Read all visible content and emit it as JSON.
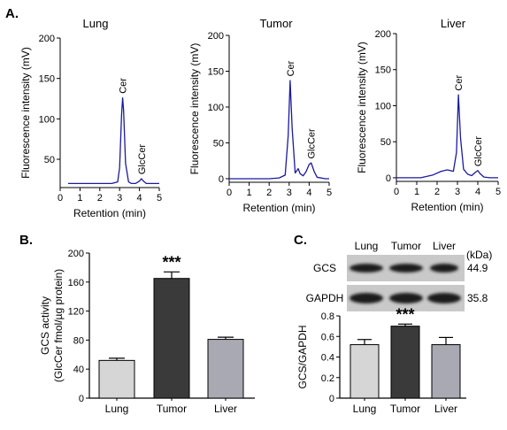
{
  "figure_labels": {
    "a": "A.",
    "b": "B.",
    "c": "C."
  },
  "chart_data": [
    {
      "type": "line",
      "title": "Lung",
      "xlabel": "Retention (min)",
      "ylabel": "Fluorescence intensity (mV)",
      "xlim": [
        0,
        5
      ],
      "ylim": [
        15,
        200
      ],
      "xticks": [
        "0",
        "1",
        "2",
        "3",
        "4",
        "5"
      ],
      "yticks": [
        "50",
        "100",
        "150",
        "200"
      ],
      "ytick_values": [
        50,
        100,
        150,
        200
      ],
      "series": [
        {
          "color": "#1a1aa0",
          "x": [
            0.4,
            2.6,
            2.9,
            3.0,
            3.1,
            3.15,
            3.2,
            3.3,
            3.45,
            3.6,
            3.8,
            4.0,
            4.1,
            4.2,
            4.35,
            4.5,
            5.0
          ],
          "y": [
            20,
            20,
            22,
            40,
            105,
            126,
            110,
            45,
            22,
            20,
            20,
            23,
            26,
            23,
            20,
            20,
            20
          ]
        }
      ],
      "annotations": [
        {
          "text": "Cer",
          "x": 3.15,
          "y": 128
        },
        {
          "text": "GlcCer",
          "x": 4.1,
          "y": 28
        }
      ]
    },
    {
      "type": "line",
      "title": "Tumor",
      "xlabel": "Retention (min)",
      "ylabel": "Fluorescence intensity (mV)",
      "xlim": [
        0,
        5
      ],
      "ylim": [
        -5,
        200
      ],
      "xticks": [
        "0",
        "1",
        "2",
        "3",
        "4",
        "5"
      ],
      "yticks": [
        "0",
        "50",
        "100",
        "150",
        "200"
      ],
      "ytick_values": [
        0,
        50,
        100,
        150,
        200
      ],
      "series": [
        {
          "color": "#1a1aa0",
          "x": [
            0.0,
            2.0,
            2.5,
            2.8,
            2.95,
            3.05,
            3.15,
            3.3,
            3.45,
            3.55,
            3.7,
            3.85,
            4.0,
            4.1,
            4.25,
            4.4,
            4.8,
            5.0
          ],
          "y": [
            0,
            0,
            1,
            5,
            60,
            137,
            70,
            8,
            14,
            7,
            4,
            10,
            20,
            22,
            10,
            2,
            0,
            0
          ]
        }
      ],
      "annotations": [
        {
          "text": "Cer",
          "x": 3.05,
          "y": 139
        },
        {
          "text": "GlcCer",
          "x": 4.1,
          "y": 24
        }
      ]
    },
    {
      "type": "line",
      "title": "Liver",
      "xlabel": "Retention (min)",
      "ylabel": "Fluorescence intensity (mV)",
      "xlim": [
        0,
        5
      ],
      "ylim": [
        -5,
        200
      ],
      "xticks": [
        "0",
        "1",
        "2",
        "3",
        "4",
        "5"
      ],
      "yticks": [
        "0",
        "50",
        "100",
        "150",
        "200"
      ],
      "ytick_values": [
        0,
        50,
        100,
        150,
        200
      ],
      "series": [
        {
          "color": "#1a1aa0",
          "x": [
            0.0,
            1.2,
            1.8,
            2.2,
            2.5,
            2.8,
            2.95,
            3.05,
            3.15,
            3.3,
            3.5,
            3.7,
            3.9,
            4.0,
            4.1,
            4.3,
            4.6,
            5.0
          ],
          "y": [
            0,
            0,
            4,
            9,
            11,
            9,
            35,
            115,
            55,
            12,
            5,
            3,
            8,
            10,
            6,
            1,
            0,
            0
          ]
        }
      ],
      "annotations": [
        {
          "text": "Cer",
          "x": 3.05,
          "y": 117
        },
        {
          "text": "GlcCer",
          "x": 4.0,
          "y": 12
        }
      ]
    },
    {
      "type": "bar",
      "categories": [
        "Lung",
        "Tumor",
        "Liver"
      ],
      "values": [
        52,
        165,
        81
      ],
      "errors": [
        3,
        9,
        3
      ],
      "colors": [
        "#d6d6d6",
        "#3a3a3a",
        "#a9a9b4"
      ],
      "ylabel_lines": [
        "GCS activity",
        "(GlcCer fmol/µg protein)"
      ],
      "ylim": [
        0,
        200
      ],
      "yticks": [
        "0",
        "40",
        "80",
        "120",
        "160",
        "200"
      ],
      "ytick_values": [
        0,
        40,
        80,
        120,
        160,
        200
      ],
      "significance": {
        "category": "Tumor",
        "text": "***"
      }
    },
    {
      "type": "bar",
      "categories": [
        "Lung",
        "Tumor",
        "Liver"
      ],
      "values": [
        0.52,
        0.7,
        0.52
      ],
      "errors": [
        0.05,
        0.02,
        0.07
      ],
      "colors": [
        "#d6d6d6",
        "#3a3a3a",
        "#a9a9b4"
      ],
      "ylabel": "GCS/GAPDH",
      "ylim": [
        0,
        0.8
      ],
      "yticks": [
        "0",
        "0.2",
        "0.4",
        "0.6",
        "0.8"
      ],
      "ytick_values": [
        0,
        0.2,
        0.4,
        0.6,
        0.8
      ],
      "significance": {
        "category": "Tumor",
        "text": "***"
      }
    }
  ],
  "western_blot": {
    "lane_labels": [
      "Lung",
      "Tumor",
      "Liver"
    ],
    "unit_label": "(kDa)",
    "rows": [
      {
        "protein": "GCS",
        "kda": "44.9"
      },
      {
        "protein": "GAPDH",
        "kda": "35.8"
      }
    ]
  }
}
